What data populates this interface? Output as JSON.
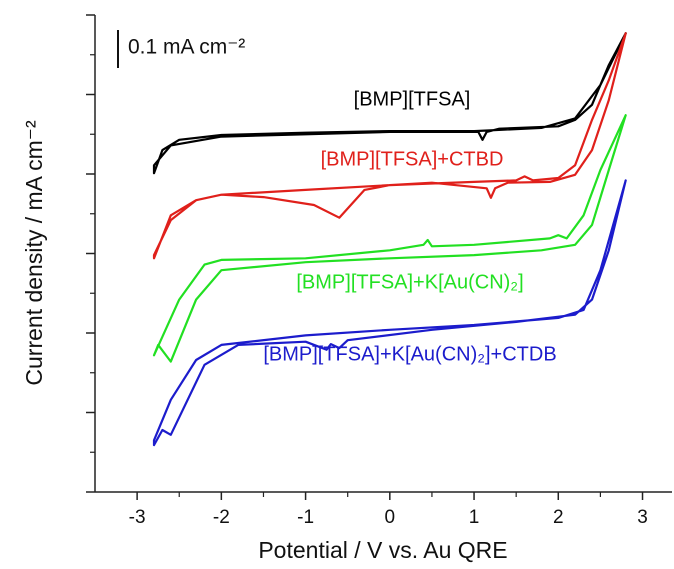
{
  "chart_data": {
    "type": "line",
    "ylabel": "Current density / mA cm⁻²",
    "xlabel": "Potential / V vs. Au QRE",
    "scale_bar_label": "0.1 mA cm⁻²",
    "xlim": [
      -3.5,
      3.35
    ],
    "xticks": [
      -3,
      -2,
      -1,
      0,
      1,
      2,
      3
    ],
    "ylim": [
      0,
      6
    ],
    "yticks": [
      0,
      1,
      2,
      3,
      4,
      5,
      6
    ],
    "y_tick_labels": false,
    "series": [
      {
        "name": "[BMP][TFSA]",
        "color": "#000000",
        "x": [
          -2.8,
          -2.7,
          -2.5,
          -2.0,
          -1.0,
          0,
          1,
          1.8,
          2.2,
          2.5,
          2.8,
          2.6,
          2.4,
          2.2,
          2.0,
          1.3,
          1.15,
          1.1,
          1.05,
          0,
          -1,
          -2,
          -2.6,
          -2.8
        ],
        "values": [
          4.01,
          4.3,
          4.43,
          4.49,
          4.52,
          4.54,
          4.54,
          4.58,
          4.7,
          5.12,
          5.77,
          5.37,
          4.87,
          4.68,
          4.6,
          4.57,
          4.53,
          4.43,
          4.53,
          4.53,
          4.5,
          4.47,
          4.36,
          4.11
        ]
      },
      {
        "name": "[BMP][TFSA]+CTBD",
        "color": "#e0201b",
        "x": [
          -2.8,
          -2.6,
          -2.3,
          -2,
          -1,
          0,
          1,
          1.5,
          1.6,
          1.7,
          2,
          2.2,
          2.4,
          2.6,
          2.8,
          2.6,
          2.4,
          2.2,
          1.9,
          1.4,
          1.25,
          1.2,
          1.15,
          0.5,
          0,
          -0.3,
          -0.6,
          -0.9,
          -1.5,
          -2,
          -2.3,
          -2.6,
          -2.8
        ],
        "values": [
          2.94,
          3.48,
          3.67,
          3.74,
          3.8,
          3.86,
          3.9,
          3.92,
          3.97,
          3.92,
          3.95,
          4.11,
          4.68,
          5.18,
          5.77,
          4.93,
          4.3,
          3.99,
          3.9,
          3.89,
          3.82,
          3.7,
          3.82,
          3.89,
          3.86,
          3.8,
          3.45,
          3.61,
          3.71,
          3.74,
          3.67,
          3.42,
          2.98
        ]
      },
      {
        "name": "[BMP][TFSA]+K[Au(CN)₂]",
        "color": "#22e022",
        "x": [
          -2.8,
          -2.5,
          -2.2,
          -2,
          -1,
          0,
          0.4,
          0.45,
          0.5,
          1,
          1.9,
          2,
          2.1,
          2.3,
          2.5,
          2.8,
          2.6,
          2.4,
          2.2,
          1.8,
          1,
          0,
          -1,
          -2,
          -2.3,
          -2.6,
          -2.75,
          -2.8
        ],
        "values": [
          1.72,
          2.42,
          2.86,
          2.92,
          2.94,
          3.04,
          3.11,
          3.17,
          3.09,
          3.11,
          3.19,
          3.23,
          3.19,
          3.48,
          4.05,
          4.74,
          4.05,
          3.36,
          3.11,
          3.04,
          2.98,
          2.94,
          2.89,
          2.79,
          2.42,
          1.64,
          1.85,
          1.72
        ]
      },
      {
        "name": "[BMP][TFSA]+K[Au(CN)₂]+CTDB",
        "color": "#1c1ccc",
        "x": [
          -2.8,
          -2.6,
          -2.3,
          -2,
          -1,
          0,
          1,
          2,
          2.3,
          2.5,
          2.8,
          2.6,
          2.4,
          2.2,
          1.5,
          0.5,
          -0.5,
          -0.6,
          -0.7,
          -0.75,
          -1,
          -1.8,
          -2.2,
          -2.6,
          -2.7,
          -2.8
        ],
        "values": [
          0.65,
          1.16,
          1.66,
          1.85,
          1.97,
          2.04,
          2.1,
          2.19,
          2.29,
          2.79,
          3.92,
          3.04,
          2.42,
          2.23,
          2.14,
          2.04,
          1.91,
          1.81,
          1.86,
          1.79,
          1.89,
          1.85,
          1.6,
          0.72,
          0.78,
          0.59
        ]
      }
    ]
  }
}
